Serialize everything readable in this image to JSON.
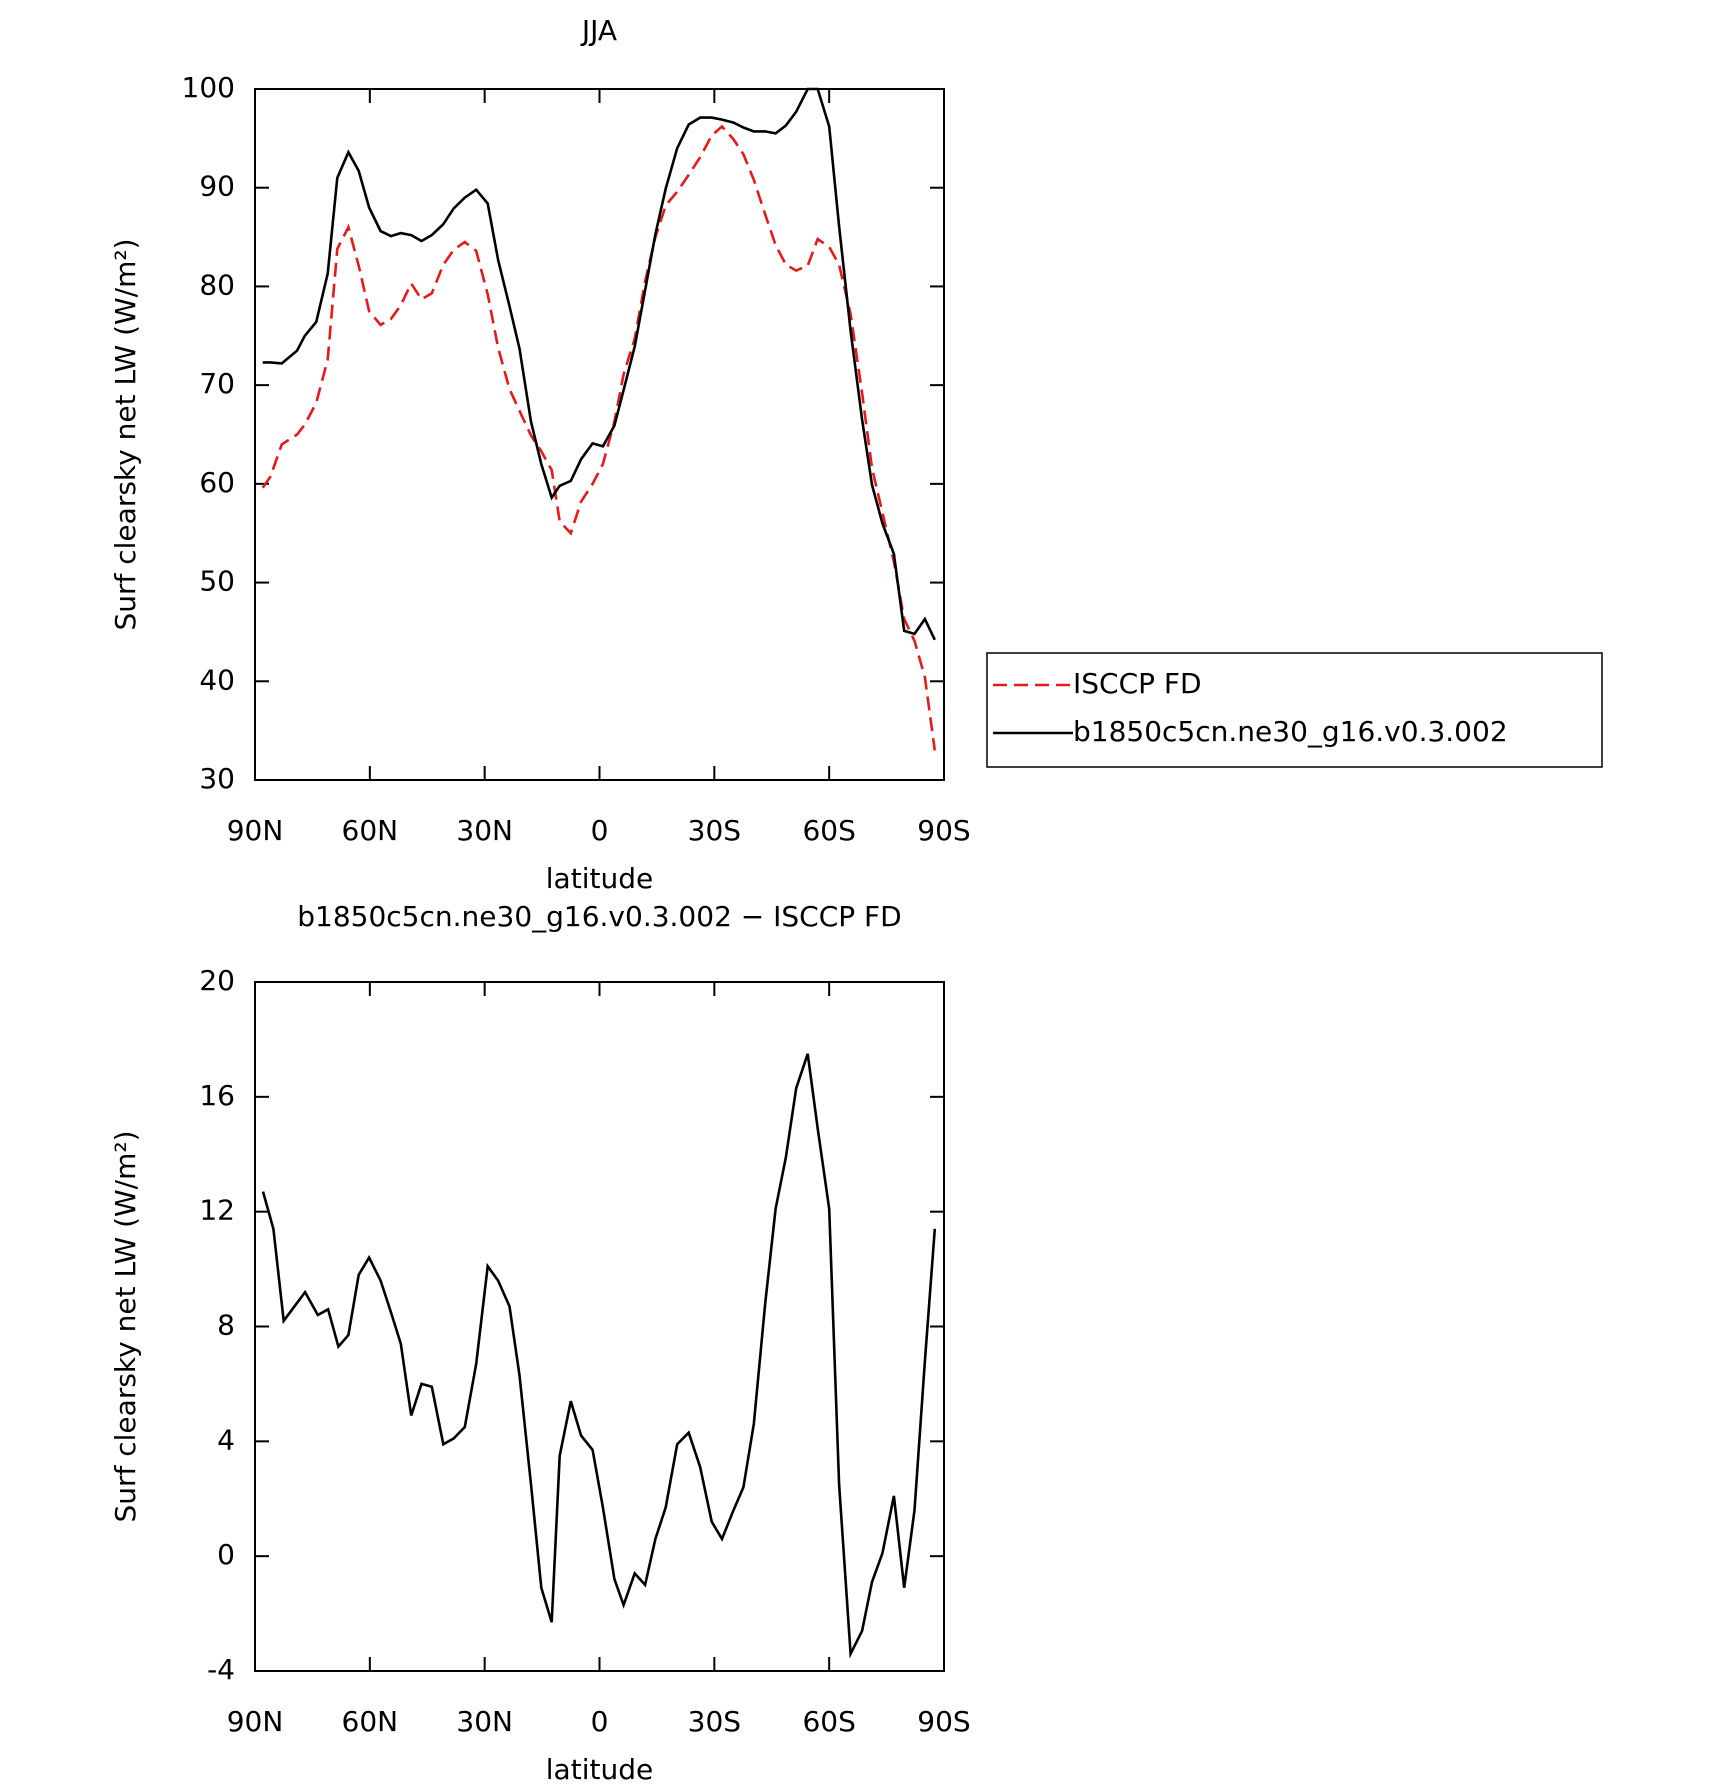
{
  "chart_data": [
    {
      "type": "line",
      "title": "JJA",
      "xlabel": "latitude",
      "ylabel": "Surf clearsky net LW (W/m²)",
      "xlim": [
        90,
        -90
      ],
      "xticks": [
        {
          "value": 90,
          "label": "90N"
        },
        {
          "value": 60,
          "label": "60N"
        },
        {
          "value": 30,
          "label": "30N"
        },
        0,
        {
          "value": -30,
          "label": "30S"
        },
        {
          "value": -60,
          "label": "60S"
        },
        {
          "value": -90,
          "label": "90S"
        }
      ],
      "ylim": [
        30,
        100
      ],
      "yticks": [
        30,
        40,
        50,
        60,
        70,
        80,
        90,
        100
      ],
      "legend": "right",
      "x": [
        88,
        86,
        83,
        79,
        77,
        74,
        71,
        68.5,
        65.6,
        62.9,
        60.2,
        57.2,
        54.5,
        51.9,
        49.2,
        46.5,
        43.8,
        40.8,
        38.1,
        35.2,
        32.2,
        29.2,
        26.5,
        23.5,
        20.9,
        17.9,
        15.2,
        12.5,
        10.4,
        7.5,
        4.8,
        1.8,
        -0.9,
        -3.9,
        -6.3,
        -9.2,
        -11.9,
        -14.6,
        -17.3,
        -20.3,
        -23.3,
        -26.3,
        -29.3,
        -32,
        -35,
        -37.6,
        -40.3,
        -43.3,
        -46,
        -48.7,
        -51.4,
        -54.4,
        -57,
        -60,
        -62.6,
        -65.6,
        -68.6,
        -71.2,
        -73.9,
        -76.9,
        -79.6,
        -82.3,
        -85,
        -87.6
      ],
      "series": [
        {
          "name": "ISCCP FD",
          "color": "#e41a1c",
          "dashed": true,
          "values": [
            59.6,
            60.7,
            64.0,
            65.0,
            66.0,
            68.2,
            72.6,
            83.8,
            86.0,
            82.1,
            77.5,
            76.1,
            76.7,
            78.1,
            80.3,
            78.7,
            79.3,
            82.2,
            83.7,
            84.5,
            83.6,
            79.2,
            73.8,
            69.6,
            67.4,
            64.9,
            63.3,
            61.4,
            56.2,
            55.0,
            58.2,
            60.0,
            62.0,
            66.3,
            71.1,
            74.7,
            80.5,
            85.0,
            88.2,
            89.6,
            91.3,
            93.1,
            95.3,
            96.2,
            94.9,
            93.4,
            90.8,
            87.3,
            84.2,
            82.2,
            81.6,
            82.1,
            84.8,
            84.0,
            82.2,
            77.2,
            69.2,
            61.6,
            57.1,
            52.1,
            46.3,
            44.1,
            40.4,
            33.0
          ]
        },
        {
          "name": "b1850c5cn.ne30_g16.v0.3.002",
          "color": "#000000",
          "dashed": false,
          "values": [
            72.3,
            72.3,
            72.2,
            73.5,
            75.0,
            76.4,
            81.3,
            91.0,
            93.6,
            91.7,
            88.0,
            85.6,
            85.1,
            85.4,
            85.2,
            84.6,
            85.2,
            86.3,
            87.9,
            89.0,
            89.8,
            88.4,
            82.7,
            78.0,
            73.7,
            66.3,
            62.0,
            58.6,
            59.8,
            60.3,
            62.5,
            64.1,
            63.8,
            65.9,
            69.5,
            73.9,
            79.6,
            85.3,
            89.9,
            94.0,
            96.4,
            97.1,
            97.1,
            96.9,
            96.6,
            96.1,
            95.7,
            95.7,
            95.5,
            96.3,
            97.7,
            100,
            100,
            96.2,
            86.1,
            75.5,
            66.5,
            59.9,
            56.0,
            52.9,
            45.1,
            44.8,
            46.3,
            44.2
          ]
        }
      ]
    },
    {
      "type": "line",
      "title": "b1850c5cn.ne30_g16.v0.3.002 − ISCCP FD",
      "xlabel": "latitude",
      "ylabel": "Surf clearsky net LW (W/m²)",
      "xlim": [
        90,
        -90
      ],
      "xticks": [
        {
          "value": 90,
          "label": "90N"
        },
        {
          "value": 60,
          "label": "60N"
        },
        {
          "value": 30,
          "label": "30N"
        },
        0,
        {
          "value": -30,
          "label": "30S"
        },
        {
          "value": -60,
          "label": "60S"
        },
        {
          "value": -90,
          "label": "90S"
        }
      ],
      "ylim": [
        -4,
        20
      ],
      "yticks": [
        -4,
        0,
        4,
        8,
        12,
        16,
        20
      ],
      "x": [
        87.9,
        85.2,
        82.5,
        76.9,
        73.6,
        70.9,
        68.2,
        65.6,
        62.9,
        60.2,
        57.2,
        54.5,
        51.9,
        49.2,
        46.5,
        43.8,
        40.8,
        38.1,
        35.2,
        32.2,
        29.2,
        26.5,
        23.5,
        20.9,
        17.9,
        15.2,
        12.5,
        10.4,
        7.5,
        4.8,
        1.8,
        -0.9,
        -3.9,
        -6.3,
        -9.2,
        -11.9,
        -14.6,
        -17.3,
        -20.3,
        -23.3,
        -26.3,
        -29.3,
        -32,
        -35,
        -37.6,
        -40.3,
        -43.3,
        -46,
        -48.7,
        -51.4,
        -54.4,
        -57,
        -60,
        -62.6,
        -65.6,
        -68.6,
        -71.2,
        -73.9,
        -76.9,
        -79.6,
        -82.3,
        -85,
        -87.6
      ],
      "color": "#000000",
      "values": [
        12.7,
        11.4,
        8.2,
        9.2,
        8.4,
        8.6,
        7.3,
        7.7,
        9.8,
        10.4,
        9.6,
        8.5,
        7.4,
        4.9,
        6.0,
        5.9,
        3.9,
        4.1,
        4.5,
        6.7,
        10.1,
        9.6,
        8.7,
        6.3,
        2.5,
        -1.1,
        -2.3,
        3.5,
        5.4,
        4.2,
        3.7,
        1.7,
        -0.8,
        -1.7,
        -0.6,
        -1.0,
        0.6,
        1.7,
        3.9,
        4.3,
        3.1,
        1.2,
        0.6,
        1.6,
        2.4,
        4.6,
        8.8,
        12.1,
        13.9,
        16.3,
        17.5,
        14.9,
        12.1,
        2.5,
        -3.4,
        -2.6,
        -0.9,
        0.1,
        2.1,
        -1.1,
        1.6,
        6.8,
        11.4
      ]
    }
  ]
}
